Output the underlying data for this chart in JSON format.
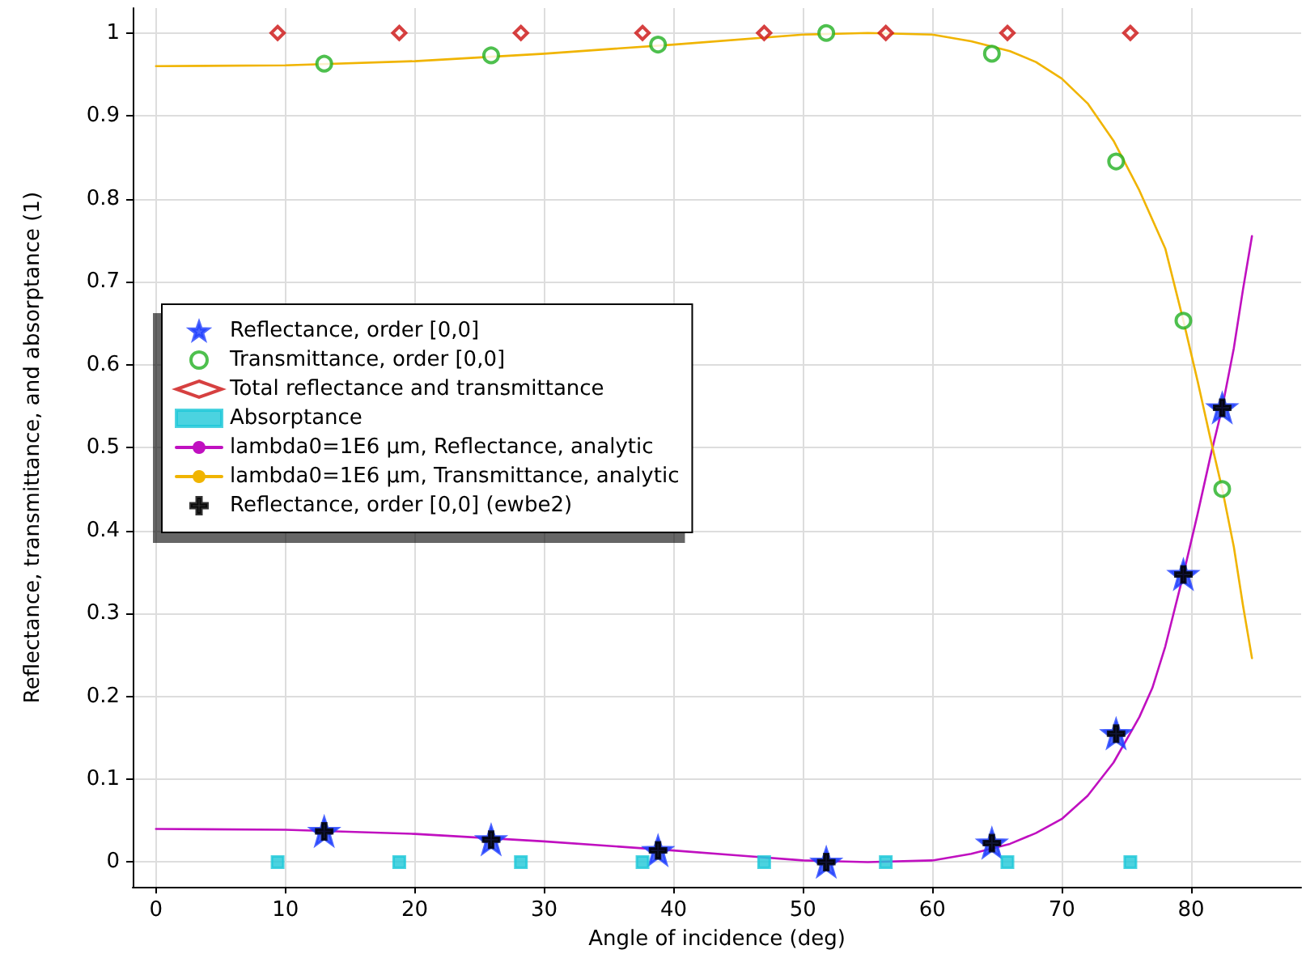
{
  "chart_data": {
    "type": "scatter",
    "xlabel": "Angle of incidence (deg)",
    "ylabel": "Reflectance, transmittance, and absorptance (1)",
    "xlim": [
      -1.8,
      88.5
    ],
    "ylim": [
      -0.03,
      1.03
    ],
    "xticks": [
      0,
      10,
      20,
      30,
      40,
      50,
      60,
      70,
      80
    ],
    "yticks": [
      0,
      0.1,
      0.2,
      0.3,
      0.4,
      0.5,
      0.6,
      0.7,
      0.8,
      0.9,
      1
    ],
    "grid": true,
    "legend": "left",
    "series": [
      {
        "name": "Reflectance, order [0,0]",
        "color": "#1f3fff",
        "marker": "star",
        "x": [
          13.0,
          25.9,
          38.8,
          51.8,
          64.6,
          74.2,
          79.4,
          82.4
        ],
        "values": [
          0.037,
          0.027,
          0.014,
          0,
          0.023,
          0.155,
          0.347,
          0.548
        ]
      },
      {
        "name": "Transmittance, order [0,0]",
        "color": "#22b022",
        "marker": "circle",
        "x": [
          13.0,
          25.9,
          38.8,
          51.8,
          64.6,
          74.2,
          79.4,
          82.4
        ],
        "values": [
          0.963,
          0.973,
          0.986,
          1,
          0.975,
          0.845,
          0.653,
          0.45
        ]
      },
      {
        "name": "Total reflectance and transmittance",
        "color": "#cc1010",
        "marker": "diamond",
        "x": [
          9.4,
          18.8,
          28.2,
          37.6,
          47.0,
          56.4,
          65.8,
          75.3
        ],
        "values": [
          1,
          1,
          1,
          1,
          1,
          1,
          1,
          1
        ]
      },
      {
        "name": "Absorptance",
        "color": "#1ec8d8",
        "marker": "square",
        "x": [
          9.4,
          18.8,
          28.2,
          37.6,
          47.0,
          56.4,
          65.8,
          75.3
        ],
        "values": [
          0,
          0,
          0,
          0,
          0,
          0,
          0,
          0
        ]
      },
      {
        "name": "lambda0=1E6 µm, Reflectance, analytic",
        "type": "line",
        "color": "#c010c0",
        "marker": "none",
        "line_style": "solid",
        "x": [
          0,
          10,
          20,
          30,
          40,
          45,
          50,
          55,
          60,
          63,
          66,
          68,
          70,
          72,
          74,
          76,
          77,
          78,
          79.4,
          80.5,
          81.5,
          82.4,
          83.3,
          84,
          84.7
        ],
        "values": [
          0.04,
          0.039,
          0.034,
          0.025,
          0.014,
          0.008,
          0.002,
          0,
          0.002,
          0.01,
          0.022,
          0.035,
          0.052,
          0.08,
          0.12,
          0.175,
          0.21,
          0.26,
          0.347,
          0.42,
          0.49,
          0.548,
          0.62,
          0.69,
          0.755
        ]
      },
      {
        "name": "lambda0=1E6 µm, Transmittance, analytic",
        "type": "line",
        "color": "#f0b400",
        "marker": "none",
        "line_style": "solid",
        "x": [
          0,
          10,
          20,
          30,
          40,
          50,
          55,
          60,
          63,
          66,
          68,
          70,
          72,
          74,
          76,
          78,
          79.4,
          80.5,
          81.5,
          82.4,
          83.3,
          84,
          84.7
        ],
        "values": [
          0.96,
          0.961,
          0.966,
          0.975,
          0.986,
          0.998,
          1,
          0.998,
          0.99,
          0.978,
          0.965,
          0.945,
          0.915,
          0.87,
          0.81,
          0.74,
          0.653,
          0.58,
          0.51,
          0.45,
          0.38,
          0.31,
          0.246
        ]
      },
      {
        "name": "Reflectance, order [0,0] (ewbe2)",
        "color": "#000000",
        "marker": "cross",
        "x": [
          13.0,
          25.9,
          38.8,
          51.8,
          64.6,
          74.2,
          79.4,
          82.4
        ],
        "values": [
          0.037,
          0.027,
          0.014,
          0,
          0.023,
          0.155,
          0.347,
          0.548
        ]
      }
    ]
  }
}
